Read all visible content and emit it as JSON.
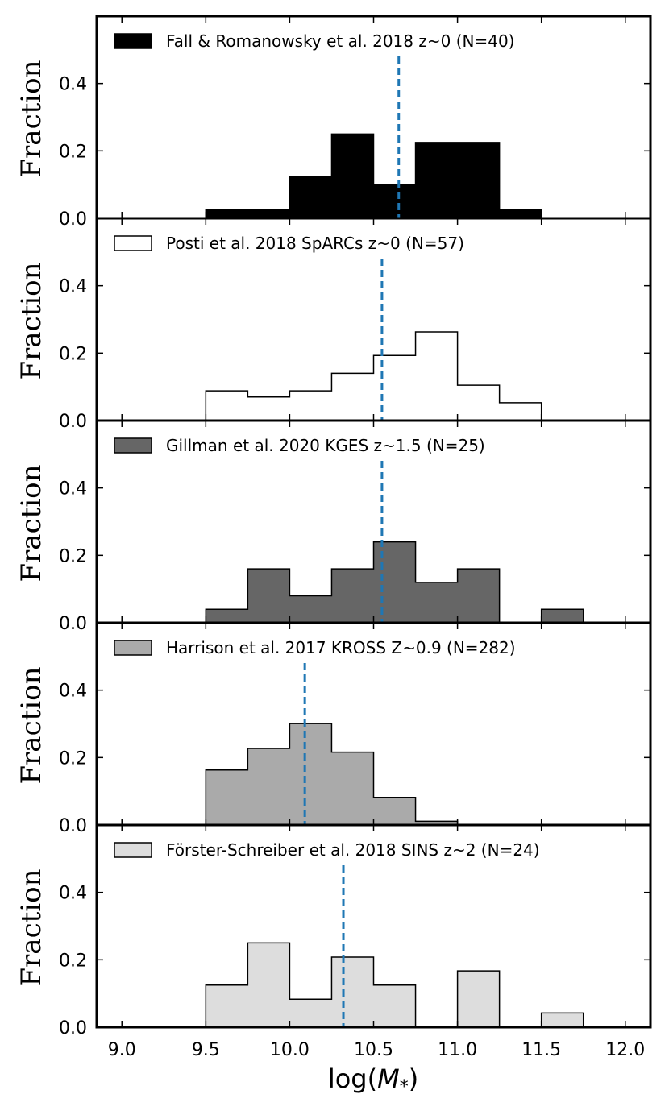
{
  "chart_data": {
    "type": "bar",
    "subtype": "stacked-panel-histogram",
    "xlabel_prefix": "log(",
    "xlabel_var": "M",
    "xlabel_sub": "*",
    "xlabel_suffix": ")",
    "ylabel": "Fraction",
    "xlim": [
      8.85,
      12.15
    ],
    "ylim": [
      0,
      0.6
    ],
    "xticks": [
      9.0,
      9.5,
      10.0,
      10.5,
      11.0,
      11.5,
      12.0
    ],
    "xtick_labels": [
      "9.0",
      "9.5",
      "10.0",
      "10.5",
      "11.0",
      "11.5",
      "12.0"
    ],
    "yticks": [
      0.0,
      0.2,
      0.4
    ],
    "ytick_labels": [
      "0.0",
      "0.2",
      "0.4"
    ],
    "bin_edges": [
      9.0,
      9.25,
      9.5,
      9.75,
      10.0,
      10.25,
      10.5,
      10.75,
      11.0,
      11.25,
      11.5,
      11.75,
      12.0
    ],
    "panels": [
      {
        "label": "Fall & Romanowsky et al. 2018 z~0 (N=40)",
        "fill": "#000000",
        "values": [
          0,
          0,
          0.025,
          0.025,
          0.125,
          0.25,
          0.1,
          0.225,
          0.225,
          0.025,
          0,
          0
        ],
        "median": 10.65
      },
      {
        "label": "Posti et al. 2018 SpARCs z~0 (N=57)",
        "fill": "#ffffff",
        "values": [
          0,
          0,
          0.088,
          0.07,
          0.088,
          0.14,
          0.193,
          0.263,
          0.105,
          0.053,
          0,
          0
        ],
        "median": 10.55
      },
      {
        "label": "Gillman et al. 2020 KGES z~1.5 (N=25)",
        "fill": "#666666",
        "values": [
          0,
          0,
          0.04,
          0.16,
          0.08,
          0.16,
          0.24,
          0.12,
          0.16,
          0,
          0.04,
          0
        ],
        "median": 10.55
      },
      {
        "label": "Harrison et al. 2017 KROSS Z~0.9 (N=282)",
        "fill": "#aaaaaa",
        "values": [
          0,
          0,
          0.163,
          0.227,
          0.301,
          0.216,
          0.082,
          0.011,
          0,
          0,
          0,
          0
        ],
        "median": 10.09
      },
      {
        "label": "Förster-Schreiber et al. 2018 SINS z~2 (N=24)",
        "fill": "#dddddd",
        "values": [
          0,
          0,
          0.125,
          0.25,
          0.083,
          0.208,
          0.125,
          0,
          0.167,
          0,
          0.042,
          0
        ],
        "median": 10.32
      }
    ]
  }
}
